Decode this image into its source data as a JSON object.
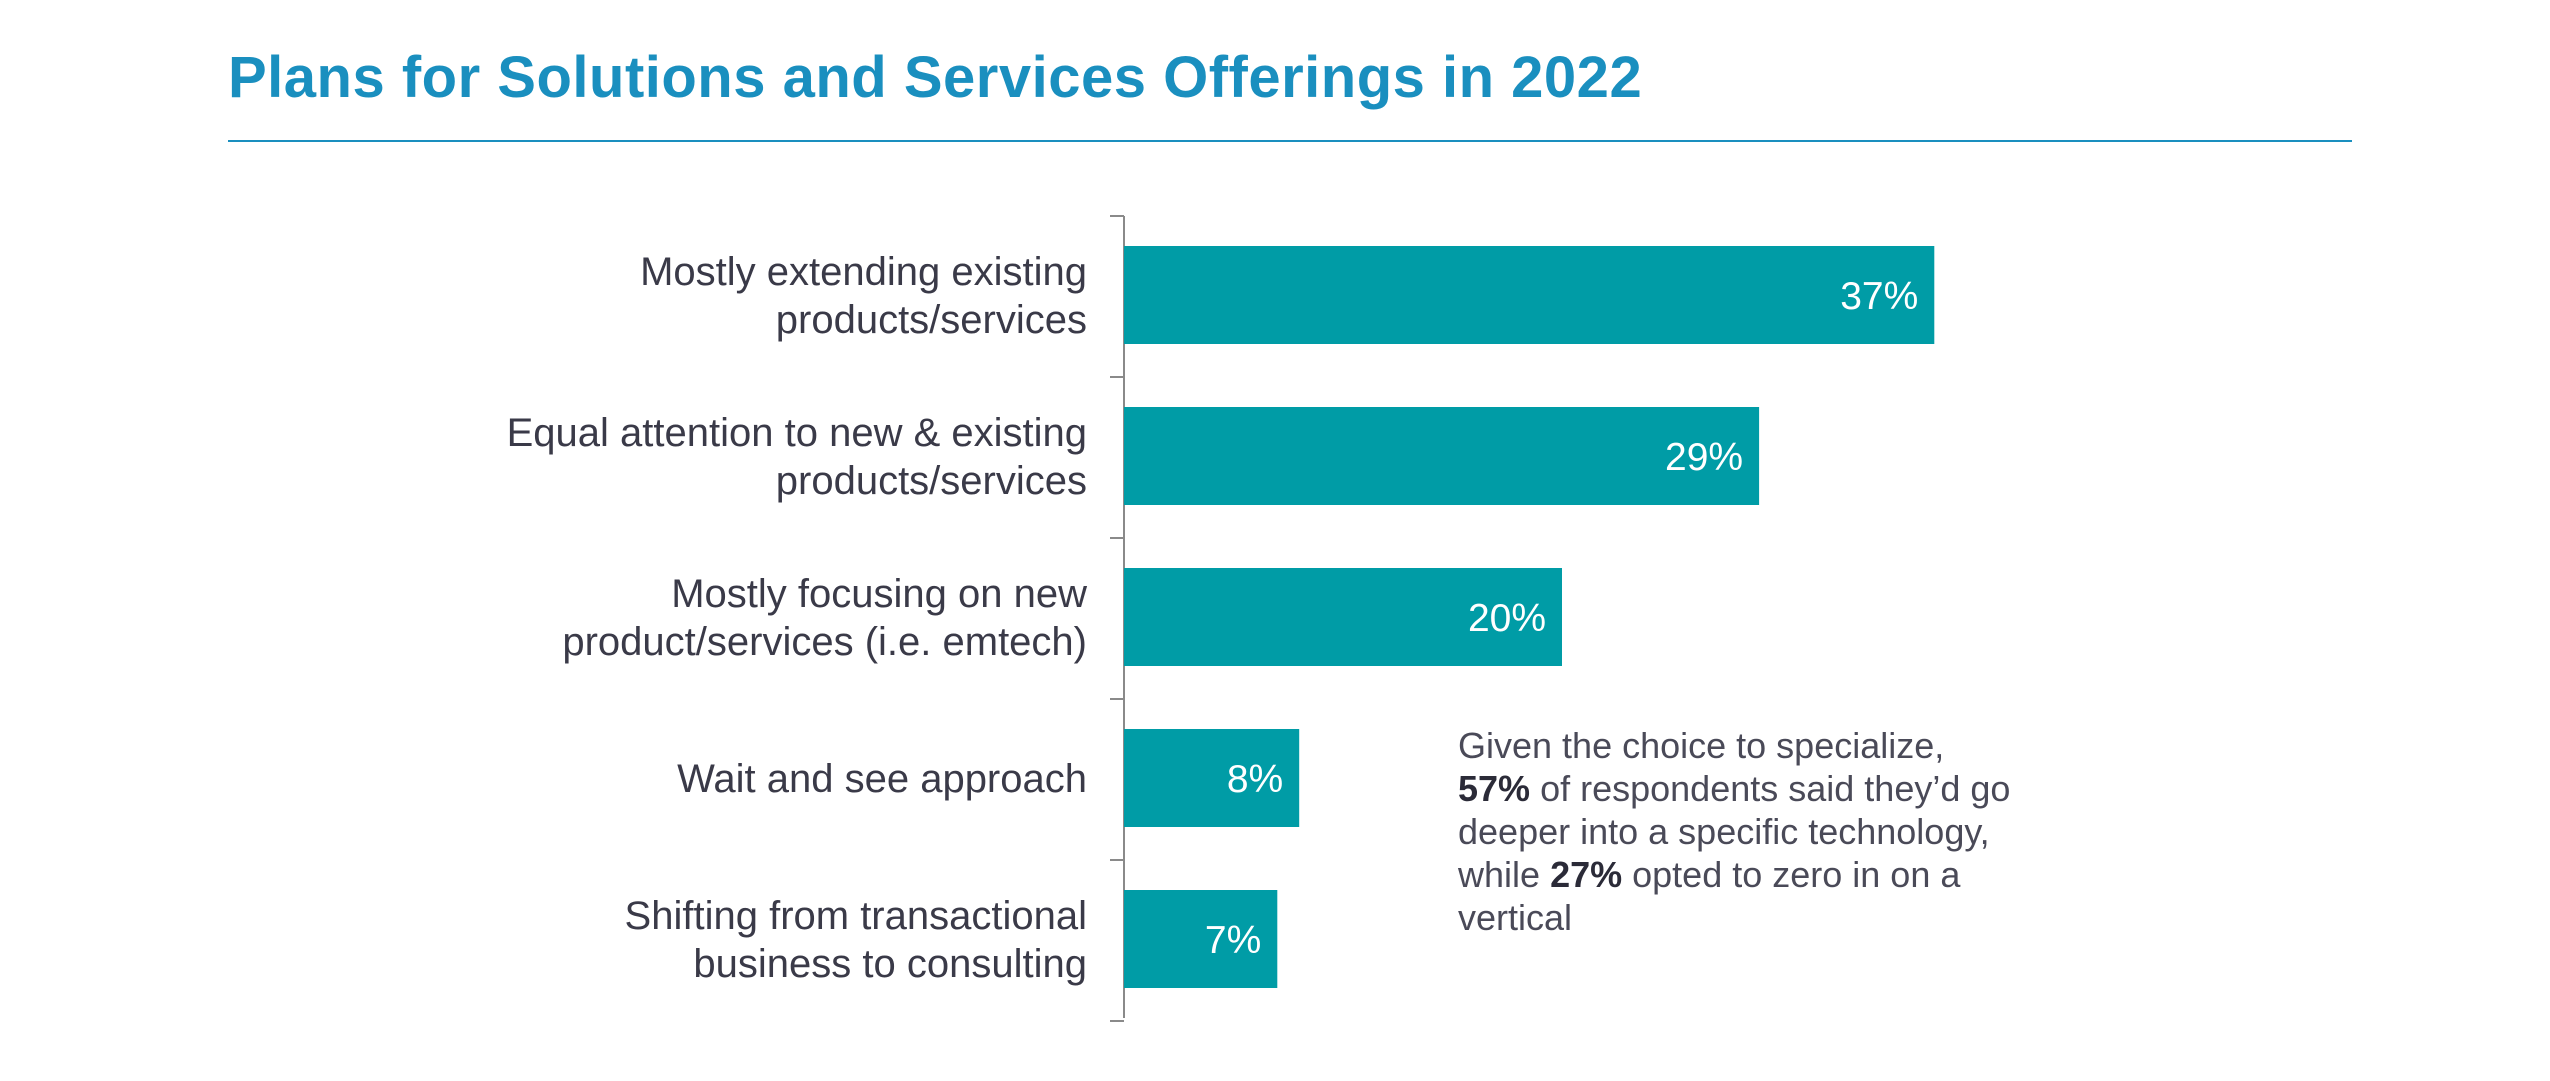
{
  "title": "Plans for Solutions and Services Offerings in 2022",
  "colors": {
    "title": "#1a8fbf",
    "bar": "#009ca6",
    "text": "#3a3a48"
  },
  "chart_data": {
    "type": "bar",
    "orientation": "horizontal",
    "title": "Plans for Solutions and Services Offerings in 2022",
    "categories": [
      [
        "Mostly extending existing",
        "products/services"
      ],
      [
        "Equal attention to new & existing",
        "products/services"
      ],
      [
        "Mostly focusing on new",
        "product/services (i.e. emtech)"
      ],
      [
        "Wait and see approach"
      ],
      [
        "Shifting from transactional",
        "business to consulting"
      ]
    ],
    "values": [
      37,
      29,
      20,
      8,
      7
    ],
    "value_labels": [
      "37%",
      "29%",
      "20%",
      "8%",
      "7%"
    ],
    "xlim": [
      0,
      100
    ],
    "xlabel": "",
    "ylabel": "",
    "grid": false,
    "legend": "none"
  },
  "callout": {
    "part1": "Given the choice to specialize,",
    "highlight1": "57%",
    "part2": "of respondents said they’d go deeper into a specific technology, while",
    "highlight2": "27%",
    "part3": "opted to zero in on a vertical"
  }
}
